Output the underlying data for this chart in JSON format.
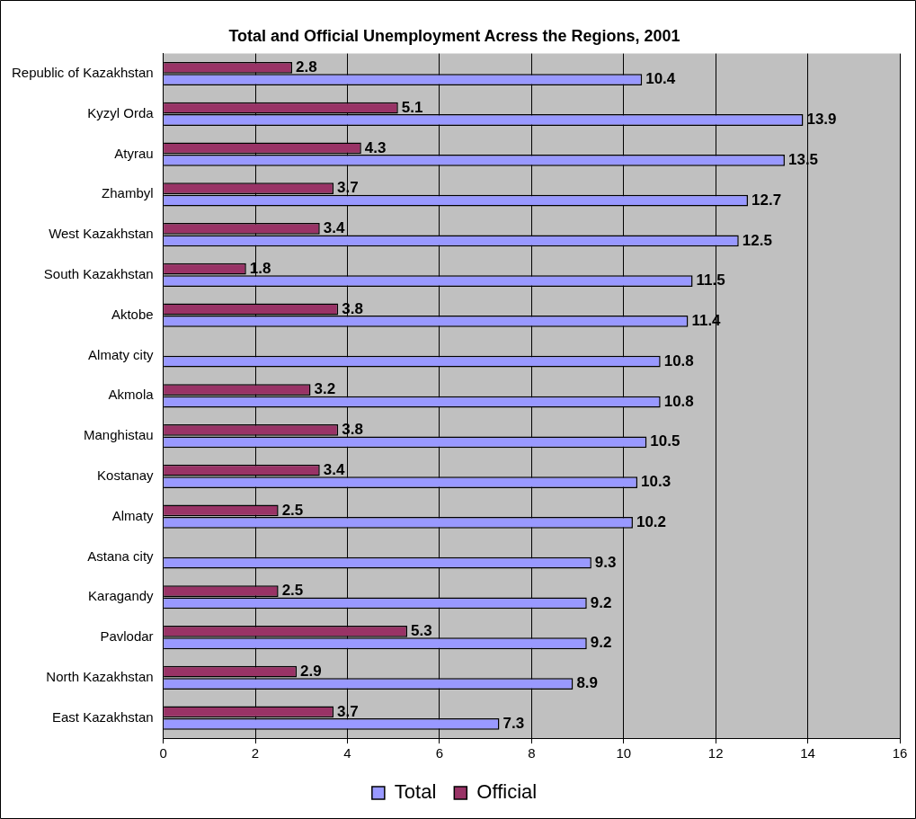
{
  "chart_data": {
    "type": "bar",
    "orientation": "horizontal",
    "title": "Total and Official Unemployment Acress the Regions, 2001",
    "categories": [
      "Republic of Kazakhstan",
      "Kyzyl Orda",
      "Atyrau",
      "Zhambyl",
      "West Kazakhstan",
      "South Kazakhstan",
      "Aktobe",
      "Almaty city",
      "Akmola",
      "Manghistau",
      "Kostanay",
      "Almaty",
      "Astana city",
      "Karagandy",
      "Pavlodar",
      "North Kazakhstan",
      "East Kazakhstan"
    ],
    "series": [
      {
        "name": "Total",
        "color": "#9999ff",
        "values": [
          10.4,
          13.9,
          13.5,
          12.7,
          12.5,
          11.5,
          11.4,
          10.8,
          10.8,
          10.5,
          10.3,
          10.2,
          9.3,
          9.2,
          9.2,
          8.9,
          7.3
        ]
      },
      {
        "name": "Official",
        "color": "#993366",
        "values": [
          2.8,
          5.1,
          4.3,
          3.7,
          3.4,
          1.8,
          3.8,
          null,
          3.2,
          3.8,
          3.4,
          2.5,
          null,
          2.5,
          5.3,
          2.9,
          3.7
        ]
      }
    ],
    "xlim": [
      0,
      16
    ],
    "xticks": [
      0,
      2,
      4,
      6,
      8,
      10,
      12,
      14,
      16
    ],
    "grid": "x",
    "legend": "bottom",
    "data_labels": true
  }
}
